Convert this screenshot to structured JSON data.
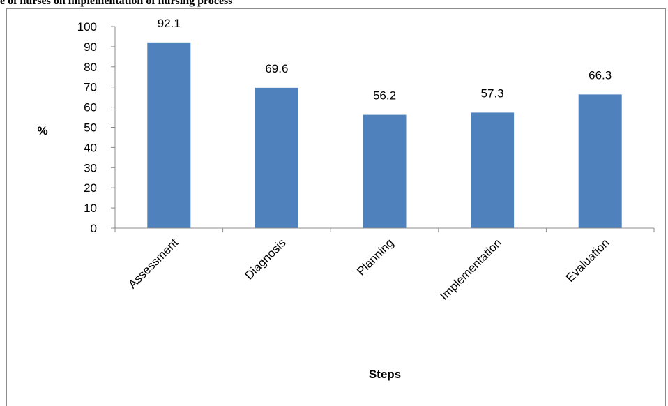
{
  "caption": "ge of nurses on implementation of nursing process",
  "chart_data": {
    "type": "bar",
    "categories": [
      "Assessment",
      "Diagnosis",
      "Planning",
      "Implementation",
      "Evaluation"
    ],
    "values": [
      92.1,
      69.6,
      56.2,
      57.3,
      66.3
    ],
    "data_labels": [
      "92.1",
      "69.6",
      "56.2",
      "57.3",
      "66.3"
    ],
    "title": "",
    "xlabel": "Steps",
    "ylabel": "%",
    "ylim": [
      0,
      100
    ],
    "yticks": [
      0,
      10,
      20,
      30,
      40,
      50,
      60,
      70,
      80,
      90,
      100
    ],
    "grid": false,
    "legend": "none",
    "bar_color": "#4f81bd"
  }
}
